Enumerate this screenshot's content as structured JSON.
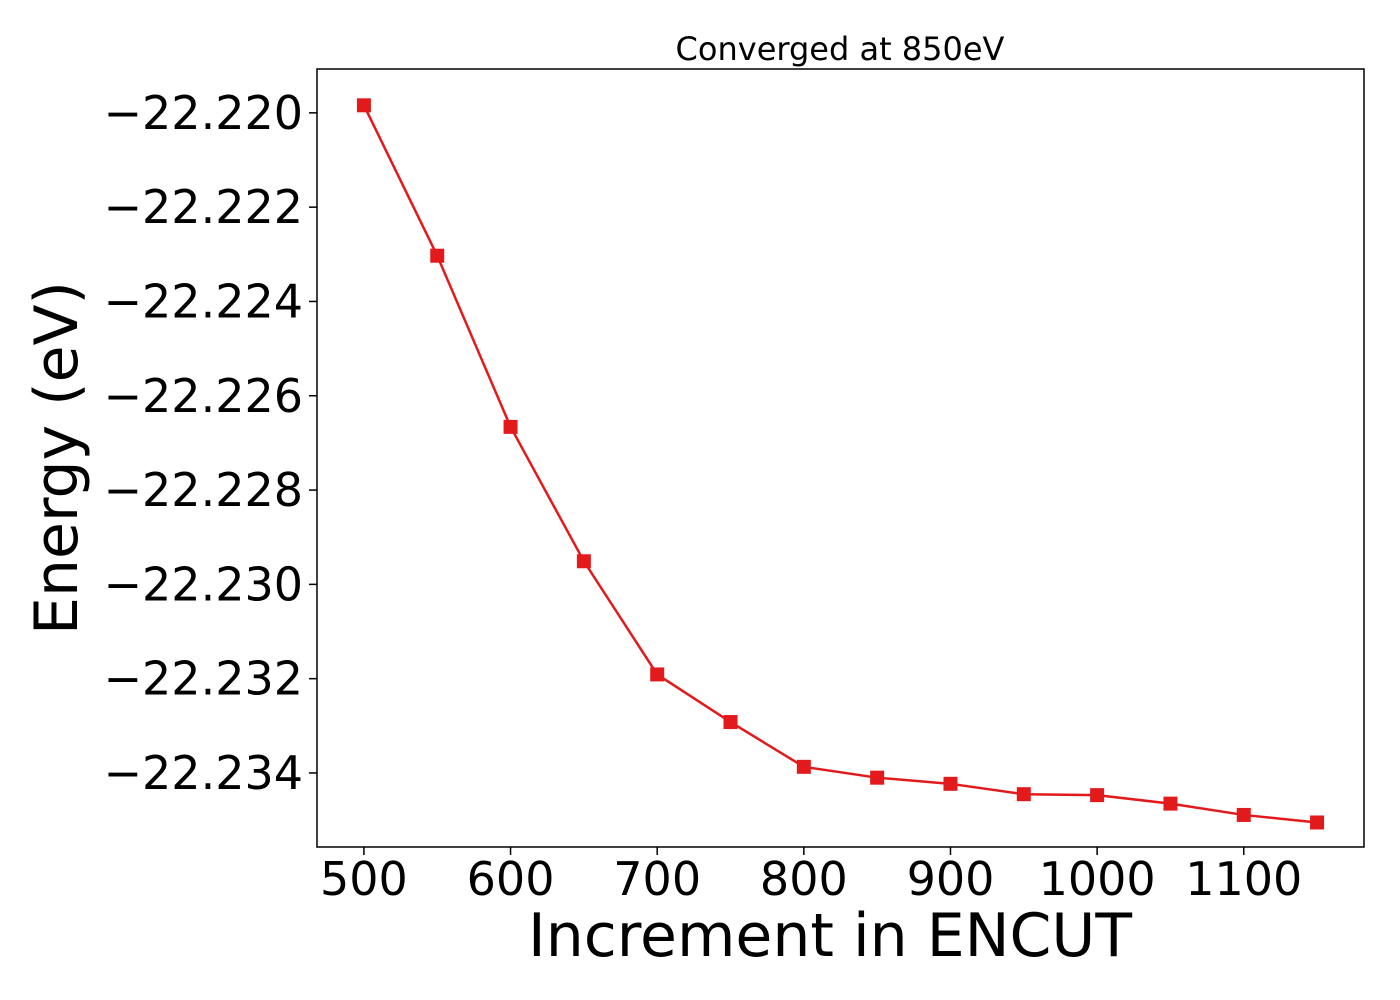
{
  "chart_data": {
    "type": "line",
    "title": "Converged at 850eV",
    "xlabel": "Increment in ENCUT",
    "ylabel": "Energy (eV)",
    "x": [
      500,
      550,
      600,
      650,
      700,
      750,
      800,
      850,
      900,
      950,
      1000,
      1050,
      1100,
      1150
    ],
    "series": [
      {
        "name": "",
        "color": "#e31a1c",
        "marker": "square",
        "values": [
          -22.21984,
          -22.22303,
          -22.22666,
          -22.22951,
          -22.23191,
          -22.23292,
          -22.23387,
          -22.2341,
          -22.23423,
          -22.23445,
          -22.23447,
          -22.23465,
          -22.23489,
          -22.23505
        ]
      }
    ],
    "xlim": [
      468,
      1182
    ],
    "ylim": [
      -22.23557,
      -22.21907
    ],
    "xticks": [
      500,
      600,
      700,
      800,
      900,
      1000,
      1100
    ],
    "xtick_labels": [
      "500",
      "600",
      "700",
      "800",
      "900",
      "1000",
      "1100"
    ],
    "yticks": [
      -22.22,
      -22.222,
      -22.224,
      -22.226,
      -22.228,
      -22.23,
      -22.232,
      -22.234
    ],
    "ytick_labels": [
      "−22.220",
      "−22.222",
      "−22.224",
      "−22.226",
      "−22.228",
      "−22.230",
      "−22.232",
      "−22.234"
    ],
    "grid": false,
    "legend": "none"
  }
}
